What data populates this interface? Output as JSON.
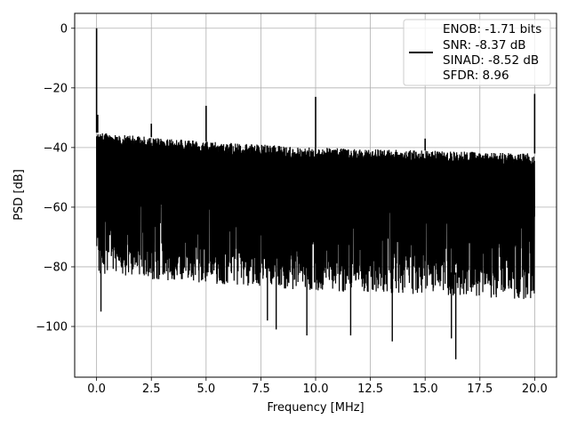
{
  "chart_data": {
    "type": "line",
    "xlabel": "Frequency [MHz]",
    "ylabel": "PSD [dB]",
    "xlim": [
      -1.0,
      21.0
    ],
    "ylim": [
      -117,
      5
    ],
    "xticks": [
      0.0,
      2.5,
      5.0,
      7.5,
      10.0,
      12.5,
      15.0,
      17.5,
      20.0
    ],
    "xtick_labels": [
      "0.0",
      "2.5",
      "5.0",
      "7.5",
      "10.0",
      "12.5",
      "15.0",
      "17.5",
      "20.0"
    ],
    "yticks": [
      0,
      -20,
      -40,
      -60,
      -80,
      -100
    ],
    "ytick_labels": [
      "0",
      "−20",
      "−40",
      "−60",
      "−80",
      "−100"
    ],
    "grid": true,
    "line_color": "#000000",
    "legend": {
      "placement": "top-right",
      "entries": [
        "ENOB: -1.71 bits",
        "SNR: -8.37 dB",
        "SINAD: -8.52 dB",
        "SFDR: 8.96"
      ]
    },
    "series": [
      {
        "noise_floor_upper": [
          {
            "x": 0.0,
            "y": -35
          },
          {
            "x": 5.0,
            "y": -38
          },
          {
            "x": 10.0,
            "y": -40
          },
          {
            "x": 15.0,
            "y": -41
          },
          {
            "x": 20.0,
            "y": -42
          }
        ],
        "noise_floor_lower_typical": [
          {
            "x": 0.0,
            "y": -80
          },
          {
            "x": 10.0,
            "y": -85
          },
          {
            "x": 20.0,
            "y": -88
          }
        ],
        "peaks": [
          {
            "x": 0.0,
            "y": 0
          },
          {
            "x": 0.05,
            "y": -29
          },
          {
            "x": 2.5,
            "y": -32
          },
          {
            "x": 5.0,
            "y": -26
          },
          {
            "x": 10.0,
            "y": -23
          },
          {
            "x": 15.0,
            "y": -37
          },
          {
            "x": 20.0,
            "y": -22
          }
        ],
        "dips": [
          {
            "x": 0.2,
            "y": -95
          },
          {
            "x": 7.8,
            "y": -98
          },
          {
            "x": 8.2,
            "y": -101
          },
          {
            "x": 9.6,
            "y": -103
          },
          {
            "x": 11.6,
            "y": -103
          },
          {
            "x": 13.5,
            "y": -105
          },
          {
            "x": 16.2,
            "y": -104
          },
          {
            "x": 16.4,
            "y": -111
          }
        ]
      }
    ]
  }
}
